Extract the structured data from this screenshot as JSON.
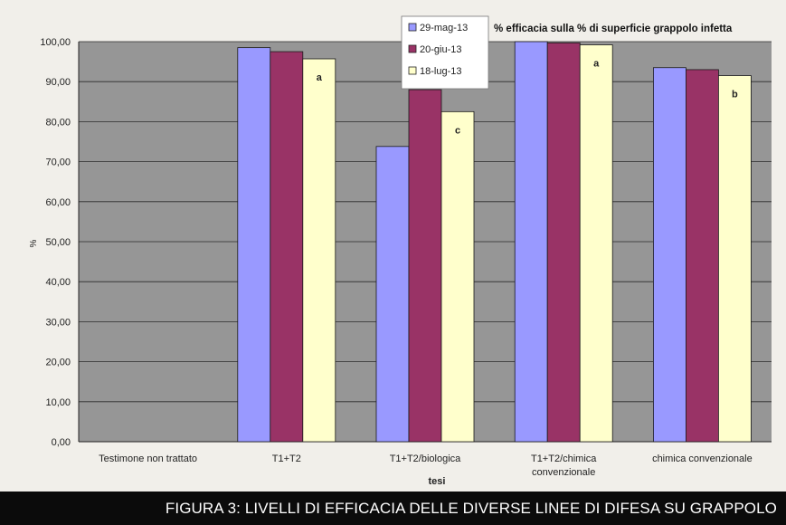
{
  "chart_data": {
    "type": "bar",
    "title": "% efficacia sulla % di superficie grappolo infetta",
    "xlabel": "tesi",
    "ylabel": "%",
    "ylim": [
      0,
      100
    ],
    "yticks": [
      "0,00",
      "10,00",
      "20,00",
      "30,00",
      "40,00",
      "50,00",
      "60,00",
      "70,00",
      "80,00",
      "90,00",
      "100,00"
    ],
    "categories": [
      "Testimone non trattato",
      "T1+T2",
      "T1+T2/biologica",
      "T1+T2/chimica convenzionale",
      "chimica convenzionale"
    ],
    "series": [
      {
        "name": "29-mag-13",
        "color": "#9999ff",
        "values": [
          0,
          98.5,
          73.8,
          100,
          93.5
        ]
      },
      {
        "name": "20-giu-13",
        "color": "#993366",
        "values": [
          0,
          97.5,
          88,
          99.7,
          93
        ]
      },
      {
        "name": "18-lug-13",
        "color": "#ffffcc",
        "values": [
          0,
          95.7,
          82.5,
          99.2,
          91.5
        ]
      }
    ],
    "annotations": [
      {
        "category": "T1+T2",
        "text": "a"
      },
      {
        "category": "T1+T2/biologica",
        "text": "c"
      },
      {
        "category": "T1+T2/chimica convenzionale",
        "text": "a"
      },
      {
        "category": "chimica convenzionale",
        "text": "b"
      }
    ],
    "legend_position": "top-center",
    "grid": true,
    "plot_background": "#969696"
  },
  "caption": "FIGURA 3: LIVELLI DI EFFICACIA DELLE DIVERSE LINEE DI DIFESA SU GRAPPOLO"
}
